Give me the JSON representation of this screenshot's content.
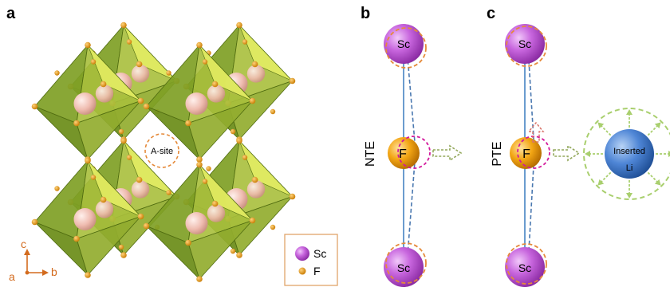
{
  "panels": {
    "a": {
      "letter": "a",
      "a_site_label": "A-site",
      "axes": {
        "c": "c",
        "a": "a",
        "b": "b"
      },
      "legend": [
        {
          "label": "Sc",
          "color": "#c05fd6"
        },
        {
          "label": "F",
          "color": "#f2a20d"
        }
      ]
    },
    "b": {
      "letter": "b",
      "label": "NTE",
      "top_atom": "Sc",
      "middle_atom": "F",
      "bottom_atom": "Sc"
    },
    "c": {
      "letter": "c",
      "label": "PTE",
      "top_atom": "Sc",
      "middle_atom": "F",
      "bottom_atom": "Sc",
      "inserted_label_line1": "Inserted",
      "inserted_label_line2": "Li"
    }
  },
  "colors": {
    "octahedron_dark": "#7f9f25",
    "octahedron_light": "#e6ef64",
    "sc": "#c05fd6",
    "f": "#f2a20d",
    "li": "#4f86d6",
    "dashed_orange": "#e58a3a",
    "dashed_magenta": "#d3199c",
    "bond_blue": "#6b9ccf",
    "arrow_green": "#93a85c",
    "li_dash": "#a9cf6e",
    "axis_orange": "#d36b1e"
  }
}
